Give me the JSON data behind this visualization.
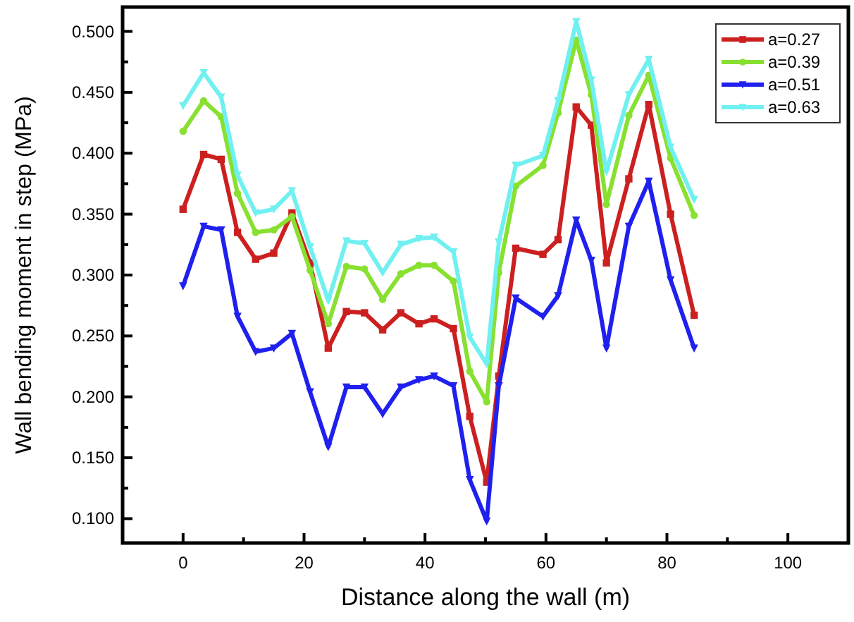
{
  "chart_data": {
    "type": "line",
    "xlabel": "Distance along the wall (m)",
    "ylabel": "Wall bending moment in step (MPa)",
    "x": [
      0,
      3.4,
      6.3,
      9,
      12,
      15,
      18,
      21,
      24,
      27,
      30,
      33,
      36,
      39,
      41.5,
      44.7,
      47.4,
      50.2,
      52.2,
      55,
      59.5,
      62,
      65,
      67.5,
      70,
      73.7,
      77,
      80.6,
      84.5
    ],
    "series": [
      {
        "name": "a=0.27",
        "color": "#cc2020",
        "marker": "square",
        "values": [
          0.354,
          0.399,
          0.395,
          0.335,
          0.313,
          0.318,
          0.351,
          0.31,
          0.24,
          0.27,
          0.269,
          0.255,
          0.269,
          0.26,
          0.264,
          0.256,
          0.184,
          0.13,
          0.217,
          0.322,
          0.317,
          0.329,
          0.438,
          0.423,
          0.31,
          0.379,
          0.44,
          0.35,
          0.267
        ]
      },
      {
        "name": "a=0.39",
        "color": "#88e030",
        "marker": "circle",
        "values": [
          0.418,
          0.443,
          0.43,
          0.367,
          0.335,
          0.337,
          0.348,
          0.304,
          0.26,
          0.307,
          0.305,
          0.28,
          0.301,
          0.308,
          0.308,
          0.295,
          0.221,
          0.196,
          0.302,
          0.373,
          0.39,
          0.433,
          0.493,
          0.448,
          0.358,
          0.431,
          0.464,
          0.396,
          0.349
        ]
      },
      {
        "name": "a=0.51",
        "color": "#2020ee",
        "marker": "triangle",
        "values": [
          0.291,
          0.34,
          0.337,
          0.266,
          0.237,
          0.24,
          0.252,
          0.204,
          0.159,
          0.208,
          0.208,
          0.186,
          0.208,
          0.214,
          0.217,
          0.209,
          0.132,
          0.098,
          0.209,
          0.281,
          0.266,
          0.283,
          0.345,
          0.312,
          0.24,
          0.34,
          0.377,
          0.296,
          0.24
        ]
      },
      {
        "name": "a=0.63",
        "color": "#70f0f0",
        "marker": "triangle",
        "values": [
          0.439,
          0.466,
          0.446,
          0.382,
          0.351,
          0.354,
          0.369,
          0.323,
          0.279,
          0.328,
          0.326,
          0.302,
          0.325,
          0.33,
          0.331,
          0.319,
          0.249,
          0.227,
          0.327,
          0.39,
          0.398,
          0.443,
          0.508,
          0.46,
          0.385,
          0.448,
          0.477,
          0.405,
          0.362
        ]
      }
    ],
    "xlim": [
      -10,
      110
    ],
    "xticks": [
      0,
      {
        "value": 10,
        "label": null
      },
      20,
      {
        "value": 30,
        "label": null
      },
      40,
      {
        "value": 50,
        "label": null
      },
      60,
      {
        "value": 70,
        "label": null
      },
      80,
      {
        "value": 90,
        "label": null
      },
      100
    ],
    "ylim": [
      0.08,
      0.52
    ],
    "yticks": [
      {
        "value": 0.1,
        "label": "0.100"
      },
      {
        "value": 0.125,
        "label": null
      },
      {
        "value": 0.15,
        "label": "0.150"
      },
      {
        "value": 0.175,
        "label": null
      },
      {
        "value": 0.2,
        "label": "0.200"
      },
      {
        "value": 0.225,
        "label": null
      },
      {
        "value": 0.25,
        "label": "0.250"
      },
      {
        "value": 0.275,
        "label": null
      },
      {
        "value": 0.3,
        "label": "0.300"
      },
      {
        "value": 0.325,
        "label": null
      },
      {
        "value": 0.35,
        "label": "0.350"
      },
      {
        "value": 0.375,
        "label": null
      },
      {
        "value": 0.4,
        "label": "0.400"
      },
      {
        "value": 0.425,
        "label": null
      },
      {
        "value": 0.45,
        "label": "0.450"
      },
      {
        "value": 0.475,
        "label": null
      },
      {
        "value": 0.5,
        "label": "0.500"
      }
    ],
    "legend": "top right",
    "grid": false,
    "line_style": "solid"
  }
}
